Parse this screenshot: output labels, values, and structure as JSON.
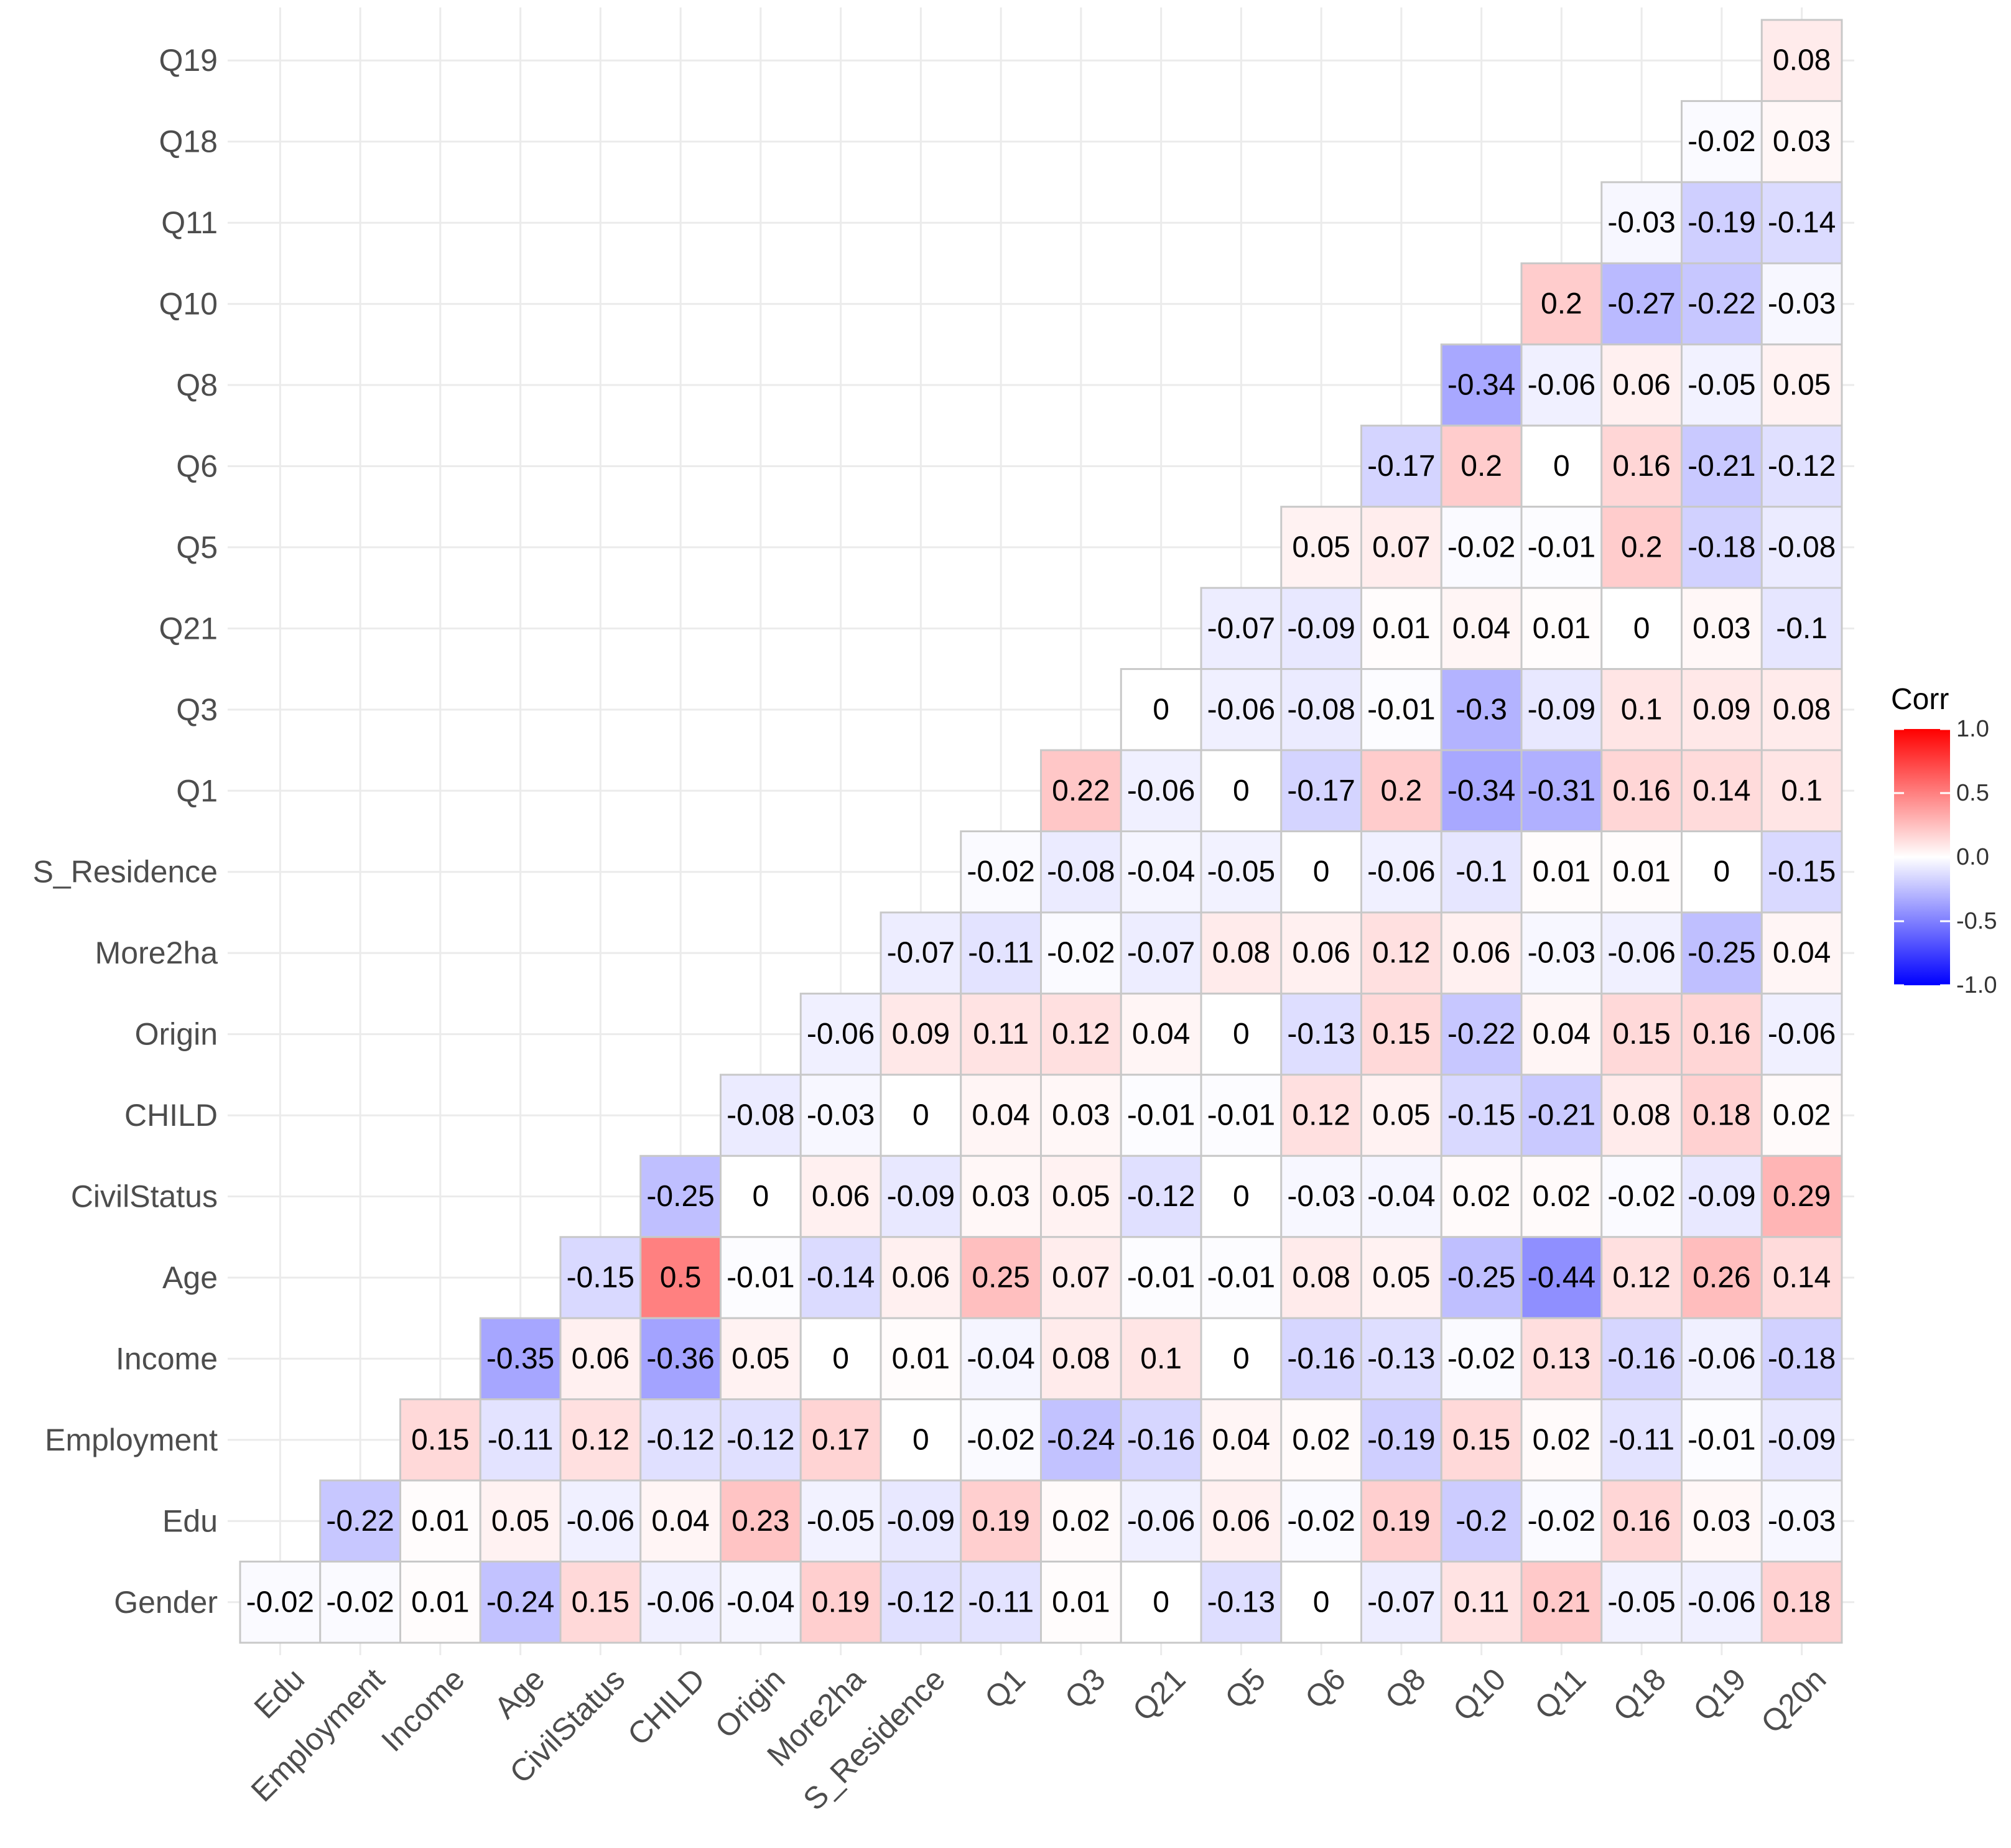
{
  "chart_data": {
    "type": "heatmap",
    "title": "",
    "xlabel": "",
    "ylabel": "",
    "x_labels": [
      "Edu",
      "Employment",
      "Income",
      "Age",
      "CivilStatus",
      "CHILD",
      "Origin",
      "More2ha",
      "S_Residence",
      "Q1",
      "Q3",
      "Q21",
      "Q5",
      "Q6",
      "Q8",
      "Q10",
      "Q11",
      "Q18",
      "Q19",
      "Q20n"
    ],
    "y_labels": [
      "Q19",
      "Q18",
      "Q11",
      "Q10",
      "Q8",
      "Q6",
      "Q5",
      "Q21",
      "Q3",
      "Q1",
      "S_Residence",
      "More2ha",
      "Origin",
      "CHILD",
      "CivilStatus",
      "Age",
      "Income",
      "Employment",
      "Edu",
      "Gender"
    ],
    "cell_labels": [
      [
        "",
        "",
        "",
        "",
        "",
        "",
        "",
        "",
        "",
        "",
        "",
        "",
        "",
        "",
        "",
        "",
        "",
        "",
        "",
        "0.08"
      ],
      [
        "",
        "",
        "",
        "",
        "",
        "",
        "",
        "",
        "",
        "",
        "",
        "",
        "",
        "",
        "",
        "",
        "",
        "",
        "-0.02",
        "0.03"
      ],
      [
        "",
        "",
        "",
        "",
        "",
        "",
        "",
        "",
        "",
        "",
        "",
        "",
        "",
        "",
        "",
        "",
        "",
        "-0.03",
        "-0.19",
        "-0.14"
      ],
      [
        "",
        "",
        "",
        "",
        "",
        "",
        "",
        "",
        "",
        "",
        "",
        "",
        "",
        "",
        "",
        "",
        "0.2",
        "-0.27",
        "-0.22",
        "-0.03"
      ],
      [
        "",
        "",
        "",
        "",
        "",
        "",
        "",
        "",
        "",
        "",
        "",
        "",
        "",
        "",
        "",
        "-0.34",
        "-0.06",
        "0.06",
        "-0.05",
        "0.05"
      ],
      [
        "",
        "",
        "",
        "",
        "",
        "",
        "",
        "",
        "",
        "",
        "",
        "",
        "",
        "",
        "-0.17",
        "0.2",
        "0",
        "0.16",
        "-0.21",
        "-0.12"
      ],
      [
        "",
        "",
        "",
        "",
        "",
        "",
        "",
        "",
        "",
        "",
        "",
        "",
        "",
        "0.05",
        "0.07",
        "-0.02",
        "-0.01",
        "0.2",
        "-0.18",
        "-0.08"
      ],
      [
        "",
        "",
        "",
        "",
        "",
        "",
        "",
        "",
        "",
        "",
        "",
        "",
        "-0.07",
        "-0.09",
        "0.01",
        "0.04",
        "0.01",
        "0",
        "0.03",
        "-0.1"
      ],
      [
        "",
        "",
        "",
        "",
        "",
        "",
        "",
        "",
        "",
        "",
        "",
        "0",
        "-0.06",
        "-0.08",
        "-0.01",
        "-0.3",
        "-0.09",
        "0.1",
        "0.09",
        "0.08"
      ],
      [
        "",
        "",
        "",
        "",
        "",
        "",
        "",
        "",
        "",
        "",
        "0.22",
        "-0.06",
        "0",
        "-0.17",
        "0.2",
        "-0.34",
        "-0.31",
        "0.16",
        "0.14",
        "0.1"
      ],
      [
        "",
        "",
        "",
        "",
        "",
        "",
        "",
        "",
        "",
        "-0.02",
        "-0.08",
        "-0.04",
        "-0.05",
        "0",
        "-0.06",
        "-0.1",
        "0.01",
        "0.01",
        "0",
        "-0.15"
      ],
      [
        "",
        "",
        "",
        "",
        "",
        "",
        "",
        "",
        "-0.07",
        "-0.11",
        "-0.02",
        "-0.07",
        "0.08",
        "0.06",
        "0.12",
        "0.06",
        "-0.03",
        "-0.06",
        "-0.25",
        "0.04"
      ],
      [
        "",
        "",
        "",
        "",
        "",
        "",
        "",
        "-0.06",
        "0.09",
        "0.11",
        "0.12",
        "0.04",
        "0",
        "-0.13",
        "0.15",
        "-0.22",
        "0.04",
        "0.15",
        "0.16",
        "-0.06"
      ],
      [
        "",
        "",
        "",
        "",
        "",
        "",
        "-0.08",
        "-0.03",
        "0",
        "0.04",
        "0.03",
        "-0.01",
        "-0.01",
        "0.12",
        "0.05",
        "-0.15",
        "-0.21",
        "0.08",
        "0.18",
        "0.02"
      ],
      [
        "",
        "",
        "",
        "",
        "",
        "-0.25",
        "0",
        "0.06",
        "-0.09",
        "0.03",
        "0.05",
        "-0.12",
        "0",
        "-0.03",
        "-0.04",
        "0.02",
        "0.02",
        "-0.02",
        "-0.09",
        "0.29"
      ],
      [
        "",
        "",
        "",
        "",
        "-0.15",
        "0.5",
        "-0.01",
        "-0.14",
        "0.06",
        "0.25",
        "0.07",
        "-0.01",
        "-0.01",
        "0.08",
        "0.05",
        "-0.25",
        "-0.44",
        "0.12",
        "0.26",
        "0.14"
      ],
      [
        "",
        "",
        "",
        "-0.35",
        "0.06",
        "-0.36",
        "0.05",
        "0",
        "0.01",
        "-0.04",
        "0.08",
        "0.1",
        "0",
        "-0.16",
        "-0.13",
        "-0.02",
        "0.13",
        "-0.16",
        "-0.06",
        "-0.18"
      ],
      [
        "",
        "",
        "0.15",
        "-0.11",
        "0.12",
        "-0.12",
        "-0.12",
        "0.17",
        "0",
        "-0.02",
        "-0.24",
        "-0.16",
        "0.04",
        "0.02",
        "-0.19",
        "0.15",
        "0.02",
        "-0.11",
        "-0.01",
        "-0.09"
      ],
      [
        "",
        "-0.22",
        "0.01",
        "0.05",
        "-0.06",
        "0.04",
        "0.23",
        "-0.05",
        "-0.09",
        "0.19",
        "0.02",
        "-0.06",
        "0.06",
        "-0.02",
        "0.19",
        "-0.2",
        "-0.02",
        "0.16",
        "0.03",
        "-0.03"
      ],
      [
        "-0.02",
        "-0.02",
        "0.01",
        "-0.24",
        "0.15",
        "-0.06",
        "-0.04",
        "0.19",
        "-0.12",
        "-0.11",
        "0.01",
        "0",
        "-0.13",
        "0",
        "-0.07",
        "0.11",
        "0.21",
        "-0.05",
        "-0.06",
        "0.18"
      ]
    ],
    "color_scale": {
      "low": "#0000ff",
      "mid": "#ffffff",
      "high": "#ff0000",
      "limits": [
        -1,
        1
      ]
    },
    "legend": {
      "title": "Corr",
      "position": "right",
      "ticks": [
        "1.0",
        "0.5",
        "0.0",
        "-0.5",
        "-1.0"
      ],
      "tick_values": [
        1,
        0.5,
        0,
        -0.5,
        -1
      ]
    },
    "grid": true
  }
}
